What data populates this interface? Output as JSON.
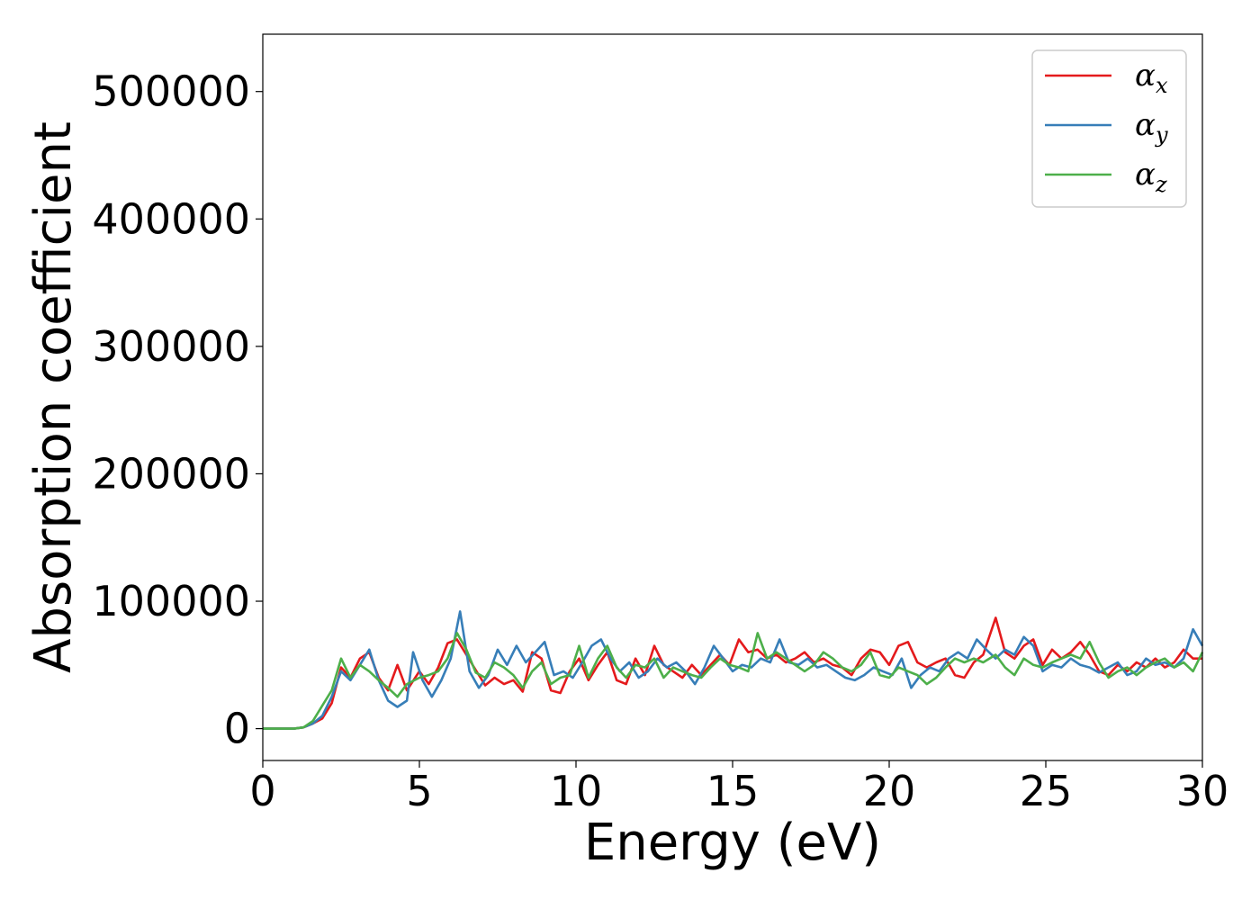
{
  "chart_data": {
    "type": "line",
    "title": "",
    "xlabel": "Energy (eV)",
    "ylabel": "Absorption coefficient",
    "xlim": [
      0,
      30
    ],
    "ylim": [
      -25000,
      545000
    ],
    "x_ticks": [
      0,
      5,
      10,
      15,
      20,
      25,
      30
    ],
    "y_ticks": [
      0,
      100000,
      200000,
      300000,
      400000,
      500000
    ],
    "x_tick_labels": [
      "0",
      "5",
      "10",
      "15",
      "20",
      "25",
      "30"
    ],
    "y_tick_labels": [
      "0",
      "100000",
      "200000",
      "300000",
      "400000",
      "500000"
    ],
    "grid": false,
    "legend_position": "top-right",
    "series": [
      {
        "name": "α",
        "name_sub": "x",
        "color": "#e41a1c",
        "points": [
          [
            0,
            0
          ],
          [
            1,
            0
          ],
          [
            1.3,
            1000
          ],
          [
            1.6,
            4000
          ],
          [
            1.9,
            8000
          ],
          [
            2.2,
            20000
          ],
          [
            2.5,
            48000
          ],
          [
            2.8,
            40000
          ],
          [
            3.1,
            55000
          ],
          [
            3.4,
            60000
          ],
          [
            3.7,
            40000
          ],
          [
            4.0,
            30000
          ],
          [
            4.3,
            50000
          ],
          [
            4.6,
            30000
          ],
          [
            5.0,
            45000
          ],
          [
            5.3,
            35000
          ],
          [
            5.6,
            48000
          ],
          [
            5.9,
            67000
          ],
          [
            6.2,
            70000
          ],
          [
            6.5,
            58000
          ],
          [
            6.8,
            46000
          ],
          [
            7.1,
            34000
          ],
          [
            7.4,
            40000
          ],
          [
            7.7,
            35000
          ],
          [
            8.0,
            38000
          ],
          [
            8.3,
            29000
          ],
          [
            8.6,
            60000
          ],
          [
            8.9,
            55000
          ],
          [
            9.2,
            30000
          ],
          [
            9.5,
            28000
          ],
          [
            9.8,
            45000
          ],
          [
            10.1,
            55000
          ],
          [
            10.4,
            38000
          ],
          [
            10.7,
            50000
          ],
          [
            11.0,
            60000
          ],
          [
            11.3,
            38000
          ],
          [
            11.6,
            35000
          ],
          [
            11.9,
            55000
          ],
          [
            12.2,
            42000
          ],
          [
            12.5,
            65000
          ],
          [
            12.8,
            50000
          ],
          [
            13.1,
            45000
          ],
          [
            13.4,
            40000
          ],
          [
            13.7,
            50000
          ],
          [
            14.0,
            42000
          ],
          [
            14.3,
            50000
          ],
          [
            14.6,
            58000
          ],
          [
            14.9,
            50000
          ],
          [
            15.2,
            70000
          ],
          [
            15.5,
            60000
          ],
          [
            15.8,
            62000
          ],
          [
            16.1,
            55000
          ],
          [
            16.4,
            58000
          ],
          [
            16.7,
            52000
          ],
          [
            17.0,
            55000
          ],
          [
            17.3,
            60000
          ],
          [
            17.6,
            52000
          ],
          [
            17.9,
            55000
          ],
          [
            18.2,
            50000
          ],
          [
            18.5,
            48000
          ],
          [
            18.8,
            42000
          ],
          [
            19.1,
            55000
          ],
          [
            19.4,
            62000
          ],
          [
            19.7,
            60000
          ],
          [
            20.0,
            50000
          ],
          [
            20.3,
            65000
          ],
          [
            20.6,
            68000
          ],
          [
            20.9,
            52000
          ],
          [
            21.2,
            48000
          ],
          [
            21.5,
            52000
          ],
          [
            21.8,
            55000
          ],
          [
            22.1,
            42000
          ],
          [
            22.4,
            40000
          ],
          [
            22.7,
            52000
          ],
          [
            23.0,
            58000
          ],
          [
            23.4,
            87000
          ],
          [
            23.7,
            60000
          ],
          [
            24.0,
            55000
          ],
          [
            24.3,
            65000
          ],
          [
            24.6,
            70000
          ],
          [
            24.9,
            50000
          ],
          [
            25.2,
            62000
          ],
          [
            25.5,
            55000
          ],
          [
            25.8,
            60000
          ],
          [
            26.1,
            68000
          ],
          [
            26.4,
            58000
          ],
          [
            26.7,
            45000
          ],
          [
            27.0,
            42000
          ],
          [
            27.3,
            50000
          ],
          [
            27.6,
            45000
          ],
          [
            27.9,
            52000
          ],
          [
            28.2,
            48000
          ],
          [
            28.5,
            55000
          ],
          [
            28.8,
            48000
          ],
          [
            29.1,
            52000
          ],
          [
            29.4,
            62000
          ],
          [
            29.7,
            55000
          ],
          [
            30,
            55000
          ]
        ]
      },
      {
        "name": "α",
        "name_sub": "y",
        "color": "#377eb8",
        "points": [
          [
            0,
            0
          ],
          [
            1,
            0
          ],
          [
            1.3,
            1000
          ],
          [
            1.6,
            4000
          ],
          [
            1.9,
            10000
          ],
          [
            2.2,
            25000
          ],
          [
            2.5,
            45000
          ],
          [
            2.8,
            38000
          ],
          [
            3.1,
            50000
          ],
          [
            3.4,
            62000
          ],
          [
            3.7,
            38000
          ],
          [
            4.0,
            22000
          ],
          [
            4.3,
            17000
          ],
          [
            4.6,
            22000
          ],
          [
            4.8,
            60000
          ],
          [
            5.1,
            38000
          ],
          [
            5.4,
            25000
          ],
          [
            5.7,
            38000
          ],
          [
            6.0,
            55000
          ],
          [
            6.3,
            92000
          ],
          [
            6.6,
            45000
          ],
          [
            6.9,
            32000
          ],
          [
            7.2,
            42000
          ],
          [
            7.5,
            62000
          ],
          [
            7.8,
            50000
          ],
          [
            8.1,
            65000
          ],
          [
            8.4,
            52000
          ],
          [
            8.7,
            60000
          ],
          [
            9.0,
            68000
          ],
          [
            9.3,
            42000
          ],
          [
            9.6,
            45000
          ],
          [
            9.9,
            40000
          ],
          [
            10.2,
            52000
          ],
          [
            10.5,
            65000
          ],
          [
            10.8,
            70000
          ],
          [
            11.1,
            55000
          ],
          [
            11.4,
            45000
          ],
          [
            11.7,
            52000
          ],
          [
            12.0,
            40000
          ],
          [
            12.3,
            45000
          ],
          [
            12.6,
            55000
          ],
          [
            12.9,
            48000
          ],
          [
            13.2,
            52000
          ],
          [
            13.5,
            45000
          ],
          [
            13.8,
            35000
          ],
          [
            14.1,
            48000
          ],
          [
            14.4,
            65000
          ],
          [
            14.7,
            55000
          ],
          [
            15.0,
            45000
          ],
          [
            15.3,
            50000
          ],
          [
            15.6,
            48000
          ],
          [
            15.9,
            55000
          ],
          [
            16.2,
            52000
          ],
          [
            16.5,
            70000
          ],
          [
            16.8,
            52000
          ],
          [
            17.1,
            50000
          ],
          [
            17.4,
            55000
          ],
          [
            17.7,
            48000
          ],
          [
            18.0,
            50000
          ],
          [
            18.3,
            45000
          ],
          [
            18.6,
            40000
          ],
          [
            18.9,
            38000
          ],
          [
            19.2,
            42000
          ],
          [
            19.5,
            48000
          ],
          [
            19.8,
            45000
          ],
          [
            20.1,
            42000
          ],
          [
            20.4,
            55000
          ],
          [
            20.7,
            32000
          ],
          [
            21.0,
            42000
          ],
          [
            21.3,
            48000
          ],
          [
            21.6,
            45000
          ],
          [
            21.9,
            55000
          ],
          [
            22.2,
            60000
          ],
          [
            22.5,
            55000
          ],
          [
            22.8,
            70000
          ],
          [
            23.1,
            62000
          ],
          [
            23.4,
            55000
          ],
          [
            23.7,
            62000
          ],
          [
            24.0,
            58000
          ],
          [
            24.3,
            72000
          ],
          [
            24.6,
            65000
          ],
          [
            24.9,
            45000
          ],
          [
            25.2,
            50000
          ],
          [
            25.5,
            48000
          ],
          [
            25.8,
            55000
          ],
          [
            26.1,
            50000
          ],
          [
            26.4,
            48000
          ],
          [
            26.7,
            44000
          ],
          [
            27.0,
            48000
          ],
          [
            27.3,
            52000
          ],
          [
            27.6,
            42000
          ],
          [
            27.9,
            45000
          ],
          [
            28.2,
            55000
          ],
          [
            28.5,
            50000
          ],
          [
            28.8,
            52000
          ],
          [
            29.1,
            48000
          ],
          [
            29.4,
            55000
          ],
          [
            29.7,
            78000
          ],
          [
            30,
            65000
          ]
        ]
      },
      {
        "name": "α",
        "name_sub": "z",
        "color": "#4daf4a",
        "points": [
          [
            0,
            0
          ],
          [
            1,
            0
          ],
          [
            1.3,
            1000
          ],
          [
            1.6,
            6000
          ],
          [
            1.9,
            18000
          ],
          [
            2.2,
            30000
          ],
          [
            2.5,
            55000
          ],
          [
            2.8,
            40000
          ],
          [
            3.1,
            50000
          ],
          [
            3.4,
            45000
          ],
          [
            3.7,
            38000
          ],
          [
            4.0,
            32000
          ],
          [
            4.3,
            25000
          ],
          [
            4.6,
            35000
          ],
          [
            5.0,
            40000
          ],
          [
            5.3,
            42000
          ],
          [
            5.6,
            45000
          ],
          [
            5.9,
            55000
          ],
          [
            6.2,
            75000
          ],
          [
            6.5,
            62000
          ],
          [
            6.8,
            44000
          ],
          [
            7.1,
            40000
          ],
          [
            7.4,
            52000
          ],
          [
            7.7,
            48000
          ],
          [
            8.0,
            42000
          ],
          [
            8.3,
            32000
          ],
          [
            8.6,
            45000
          ],
          [
            8.9,
            52000
          ],
          [
            9.2,
            35000
          ],
          [
            9.5,
            40000
          ],
          [
            9.8,
            42000
          ],
          [
            10.1,
            65000
          ],
          [
            10.4,
            40000
          ],
          [
            10.7,
            55000
          ],
          [
            11.0,
            65000
          ],
          [
            11.3,
            48000
          ],
          [
            11.6,
            40000
          ],
          [
            11.9,
            50000
          ],
          [
            12.2,
            48000
          ],
          [
            12.5,
            55000
          ],
          [
            12.8,
            40000
          ],
          [
            13.1,
            48000
          ],
          [
            13.4,
            45000
          ],
          [
            13.7,
            42000
          ],
          [
            14.0,
            40000
          ],
          [
            14.3,
            48000
          ],
          [
            14.6,
            55000
          ],
          [
            14.9,
            50000
          ],
          [
            15.2,
            48000
          ],
          [
            15.5,
            45000
          ],
          [
            15.8,
            75000
          ],
          [
            16.1,
            55000
          ],
          [
            16.4,
            60000
          ],
          [
            16.7,
            55000
          ],
          [
            17.0,
            50000
          ],
          [
            17.3,
            45000
          ],
          [
            17.6,
            50000
          ],
          [
            17.9,
            60000
          ],
          [
            18.2,
            55000
          ],
          [
            18.5,
            48000
          ],
          [
            18.8,
            45000
          ],
          [
            19.1,
            50000
          ],
          [
            19.4,
            60000
          ],
          [
            19.7,
            42000
          ],
          [
            20.0,
            40000
          ],
          [
            20.3,
            48000
          ],
          [
            20.6,
            45000
          ],
          [
            20.9,
            42000
          ],
          [
            21.2,
            35000
          ],
          [
            21.5,
            40000
          ],
          [
            21.8,
            48000
          ],
          [
            22.1,
            55000
          ],
          [
            22.4,
            52000
          ],
          [
            22.7,
            55000
          ],
          [
            23.0,
            52000
          ],
          [
            23.4,
            58000
          ],
          [
            23.7,
            48000
          ],
          [
            24.0,
            42000
          ],
          [
            24.3,
            55000
          ],
          [
            24.6,
            50000
          ],
          [
            24.9,
            48000
          ],
          [
            25.2,
            52000
          ],
          [
            25.5,
            55000
          ],
          [
            25.8,
            58000
          ],
          [
            26.1,
            55000
          ],
          [
            26.4,
            68000
          ],
          [
            26.7,
            52000
          ],
          [
            27.0,
            40000
          ],
          [
            27.3,
            45000
          ],
          [
            27.6,
            48000
          ],
          [
            27.9,
            42000
          ],
          [
            28.2,
            48000
          ],
          [
            28.5,
            52000
          ],
          [
            28.8,
            55000
          ],
          [
            29.1,
            48000
          ],
          [
            29.4,
            52000
          ],
          [
            29.7,
            45000
          ],
          [
            30,
            60000
          ]
        ]
      }
    ]
  }
}
